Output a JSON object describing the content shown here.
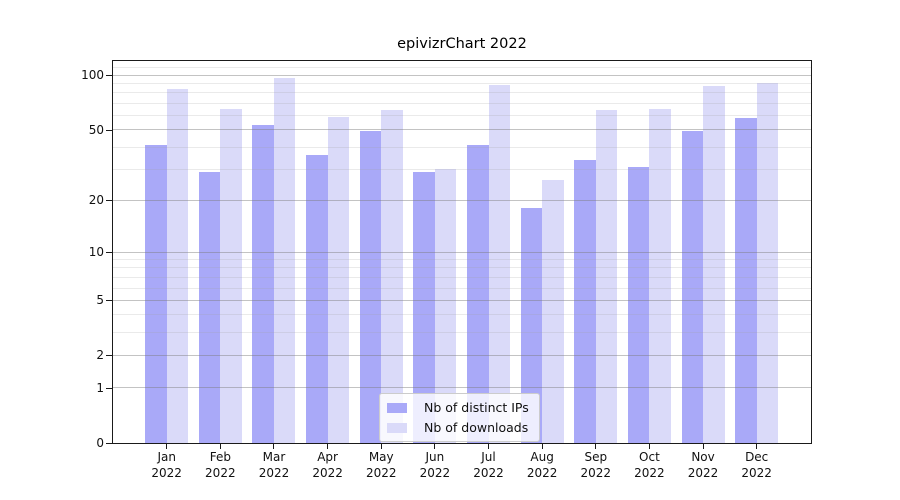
{
  "chart_data": {
    "type": "bar",
    "title": "epivizrChart 2022",
    "categories": [
      "Jan",
      "Feb",
      "Mar",
      "Apr",
      "May",
      "Jun",
      "Jul",
      "Aug",
      "Sep",
      "Oct",
      "Nov",
      "Dec"
    ],
    "category_year": "2022",
    "series": [
      {
        "name": "Nb of distinct IPs",
        "color": "#a9a9f8",
        "values": [
          41,
          29,
          53,
          36,
          49,
          29,
          41,
          18,
          34,
          31,
          49,
          58
        ]
      },
      {
        "name": "Nb of downloads",
        "color": "#dadaf9",
        "values": [
          84,
          65,
          97,
          59,
          64,
          30,
          88,
          26,
          64,
          65,
          87,
          91
        ]
      }
    ],
    "yscale": "log1p",
    "ylim": [
      0,
      120
    ],
    "yticks": [
      100,
      50,
      20,
      10,
      5,
      2,
      1,
      0
    ],
    "yticks_minor": [
      110,
      90,
      80,
      70,
      60,
      40,
      30,
      9,
      8,
      7,
      6,
      4,
      3
    ],
    "grid": "both",
    "legend_position": "lower center",
    "axis_color": "#1a1a1a",
    "grid_major_color": "rgba(122,122,122,0.45)",
    "grid_minor_color": "rgba(160,160,160,0.22)",
    "background_color": "#ffffff"
  }
}
